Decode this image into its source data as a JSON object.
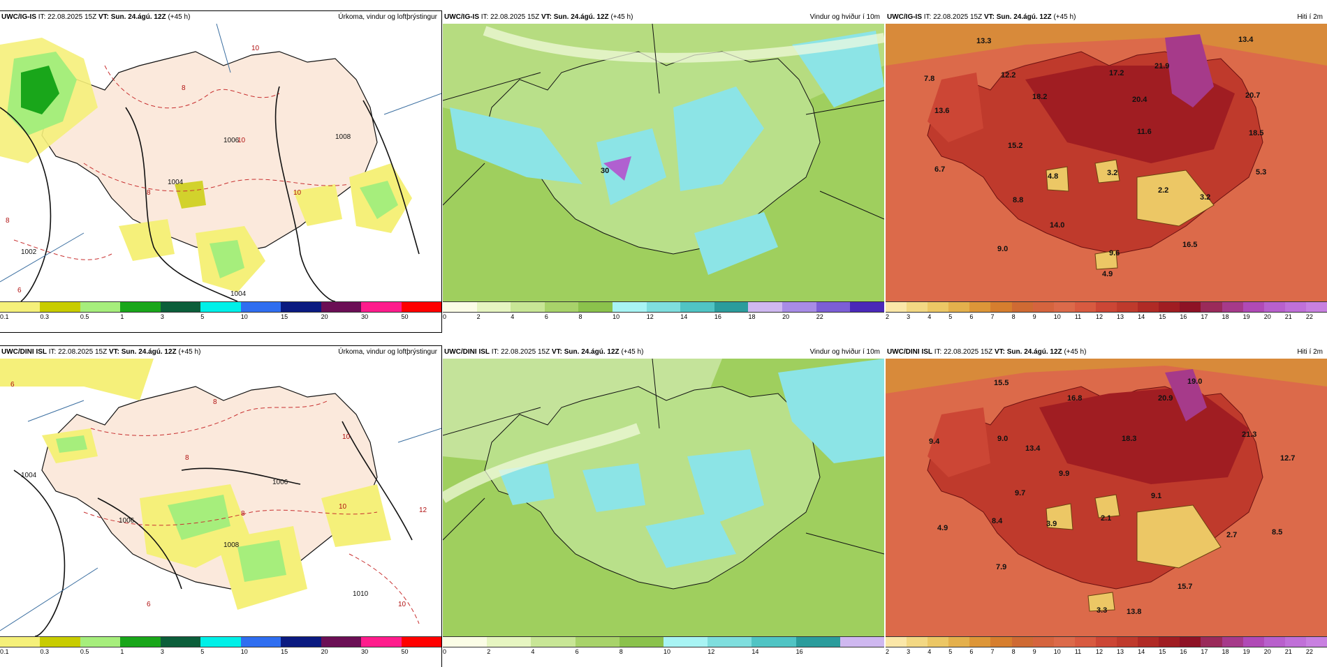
{
  "panels": [
    {
      "model": "UWC/IG-IS",
      "run_label": "IT: 22.08.2025 15Z",
      "valid_label": "VT: Sun. 24.ágú. 12Z",
      "lead": "(+45 h)",
      "title": "Úrkoma, vindur og loftþrýstingur",
      "colorbar": {
        "colors": [
          "#f5f07a",
          "#c8cc00",
          "#a6ee7c",
          "#19a61a",
          "#0b5e3a",
          "#00f0e8",
          "#2f6ef0",
          "#0a1a80",
          "#6b0f55",
          "#ff1c8c",
          "#ff0000"
        ],
        "ticks": [
          "0.1",
          "0.3",
          "0.5",
          "1",
          "3",
          "5",
          "10",
          "15",
          "20",
          "30",
          "50"
        ]
      },
      "isobars": [
        "1002",
        "1004",
        "1006",
        "1008",
        "1004"
      ],
      "temp_contours": [
        "10",
        "8",
        "6",
        "8",
        "10",
        "10",
        "8"
      ]
    },
    {
      "model": "UWC/IG-IS",
      "run_label": "IT: 22.08.2025 15Z",
      "valid_label": "VT: Sun. 24.ágú. 12Z",
      "lead": "(+45 h)",
      "title": "Vindur og hviður í 10m",
      "colorbar": {
        "colors": [
          "#fbfde6",
          "#e6f5c1",
          "#c8e696",
          "#a8d36a",
          "#8bc24c",
          "#a8f4f4",
          "#7fdede",
          "#50c4c4",
          "#2b9c9c",
          "#cfb8f0",
          "#a88ce6",
          "#7c5ed6",
          "#4a28b8"
        ],
        "ticks": [
          "0",
          "2",
          "4",
          "6",
          "8",
          "10",
          "12",
          "14",
          "16",
          "18",
          "20",
          "22"
        ]
      },
      "labels": [
        "30"
      ]
    },
    {
      "model": "UWC/IG-IS",
      "run_label": "IT: 22.08.2025 15Z",
      "valid_label": "VT: Sun. 24.ágú. 12Z",
      "lead": "(+45 h)",
      "title": "Hiti í 2m",
      "colorbar": {
        "colors": [
          "#fbe7a8",
          "#f3d883",
          "#ecc765",
          "#e4b04c",
          "#dd9638",
          "#d67e2e",
          "#cf6a33",
          "#d5643e",
          "#dc6a4a",
          "#d85a40",
          "#cc4635",
          "#bf3a2c",
          "#b02a25",
          "#a01d22",
          "#8e1225",
          "#9a2a5a",
          "#a63a8a",
          "#b04ab6",
          "#b860cc",
          "#c070d8",
          "#c880e0"
        ],
        "ticks": [
          "2",
          "3",
          "4",
          "5",
          "6",
          "7",
          "8",
          "9",
          "10",
          "11",
          "12",
          "13",
          "14",
          "15",
          "16",
          "17",
          "18",
          "19",
          "20",
          "21",
          "22"
        ]
      },
      "labels": [
        "13.3",
        "13.4",
        "7.8",
        "12.2",
        "17.2",
        "21.9",
        "13.6",
        "18.2",
        "20.4",
        "20.7",
        "11.6",
        "18.5",
        "15.2",
        "6.7",
        "4.8",
        "3.2",
        "2.2",
        "5.3",
        "3.2",
        "8.8",
        "14.0",
        "9.0",
        "9.6",
        "16.5",
        "4.9"
      ]
    },
    {
      "model": "UWC/DINI ISL",
      "run_label": "IT: 22.08.2025 15Z",
      "valid_label": "VT: Sun. 24.ágú. 12Z",
      "lead": "(+45 h)",
      "title": "Úrkoma, vindur og loftþrýstingur",
      "colorbar": {
        "colors": [
          "#f5f07a",
          "#c8cc00",
          "#a6ee7c",
          "#19a61a",
          "#0b5e3a",
          "#00f0e8",
          "#2f6ef0",
          "#0a1a80",
          "#6b0f55",
          "#ff1c8c",
          "#ff0000"
        ],
        "ticks": [
          "0.1",
          "0.3",
          "0.5",
          "1",
          "3",
          "5",
          "10",
          "15",
          "20",
          "30",
          "50"
        ]
      },
      "isobars": [
        "1004",
        "1006",
        "1006",
        "1008",
        "1010"
      ],
      "temp_contours": [
        "6",
        "8",
        "8",
        "10",
        "8",
        "10",
        "12",
        "6",
        "10"
      ]
    },
    {
      "model": "UWC/DINI ISL",
      "run_label": "IT: 22.08.2025 15Z",
      "valid_label": "VT: Sun. 24.ágú. 12Z",
      "lead": "(+45 h)",
      "title": "Vindur og hviður í 10m",
      "colorbar": {
        "colors": [
          "#fbfde6",
          "#e6f5c1",
          "#c8e696",
          "#a8d36a",
          "#8bc24c",
          "#a8f4f4",
          "#7fdede",
          "#50c4c4",
          "#2b9c9c",
          "#cfb8f0"
        ],
        "ticks": [
          "0",
          "2",
          "4",
          "6",
          "8",
          "10",
          "12",
          "14",
          "16"
        ]
      },
      "labels": []
    },
    {
      "model": "UWC/DINI ISL",
      "run_label": "IT: 22.08.2025 15Z",
      "valid_label": "VT: Sun. 24.ágú. 12Z",
      "lead": "(+45 h)",
      "title": "Hiti í 2m",
      "colorbar": {
        "colors": [
          "#fbe7a8",
          "#f3d883",
          "#ecc765",
          "#e4b04c",
          "#dd9638",
          "#d67e2e",
          "#cf6a33",
          "#d5643e",
          "#dc6a4a",
          "#d85a40",
          "#cc4635",
          "#bf3a2c",
          "#b02a25",
          "#a01d22",
          "#8e1225",
          "#9a2a5a",
          "#a63a8a",
          "#b04ab6",
          "#b860cc",
          "#c070d8",
          "#c880e0"
        ],
        "ticks": [
          "2",
          "3",
          "4",
          "5",
          "6",
          "7",
          "8",
          "9",
          "10",
          "11",
          "12",
          "13",
          "14",
          "15",
          "16",
          "17",
          "18",
          "19",
          "20",
          "21",
          "22"
        ]
      },
      "labels": [
        "15.5",
        "19.0",
        "20.9",
        "16.8",
        "9.4",
        "9.0",
        "18.3",
        "21.3",
        "13.4",
        "12.7",
        "9.9",
        "9.7",
        "9.1",
        "8.4",
        "4.9",
        "3.9",
        "2.1",
        "2.7",
        "8.5",
        "7.9",
        "15.7",
        "3.3",
        "13.8"
      ]
    }
  ]
}
